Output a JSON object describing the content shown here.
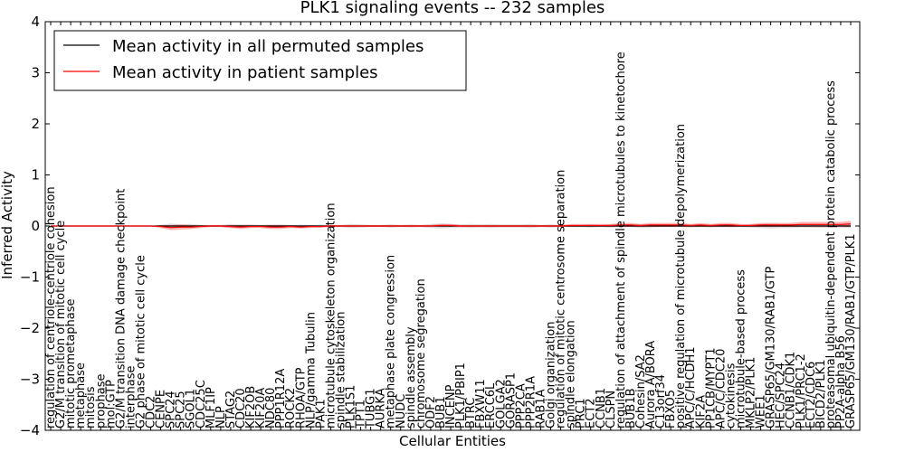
{
  "chart_data": {
    "type": "line",
    "title": "PLK1 signaling events -- 232 samples",
    "xlabel": "Cellular Entities",
    "ylabel": "Inferred Activity",
    "ylim": [
      -4,
      4
    ],
    "yticks": [
      -4,
      -3,
      -2,
      -1,
      0,
      1,
      2,
      3,
      4
    ],
    "ytick_labels": [
      "−4",
      "−3",
      "−2",
      "−1",
      "0",
      "1",
      "2",
      "3",
      "4"
    ],
    "grid": false,
    "legend_position": "top-left",
    "legend": [
      {
        "label": "Mean activity in all permuted samples",
        "color": "#000000"
      },
      {
        "label": "Mean activity in patient samples",
        "color": "#ff0000"
      }
    ],
    "categories": [
      "regulation of centriole-centriole cohesion",
      "G2/M transition of mitotic cell cycle",
      "mitotic prometaphase",
      "metaphase",
      "mitosis",
      "prophase",
      "mol:GTP",
      "G2/M transition DNA damage checkpoint",
      "interphase",
      "G2 phase of mitotic cell cycle",
      "CDC2",
      "CENPE",
      "SPC24",
      "SPC25",
      "SGOL1",
      "CDC25C",
      "MLF1IP",
      "NLP",
      "STAG2",
      "CDC20",
      "KIF2OB",
      "KIF20A",
      "NDC80",
      "PPP1R12A",
      "ROCK2",
      "RHOA/GTP",
      "NLP/gamma Tubulin",
      "PAK1",
      "microtubule cytoskeleton organization",
      "spindle stabilization",
      "PLK1S1",
      "TPT1",
      "TUBG1",
      "AURKA",
      "metaphase plate congression",
      "NUDC",
      "spindle assembly",
      "chromosome segregation",
      "ODF2",
      "BUB1",
      "INCENP",
      "PLK1/PBIP1",
      "BTRC",
      "FBXW11",
      "ERCC6L",
      "GOLGA2",
      "GORASP1",
      "PPP2CA",
      "PPP2R1A",
      "RAB1A",
      "Golgi organization",
      "regulation of mitotic centrosome separation",
      "spindle elongation",
      "PRC1",
      "ECT2",
      "CCNB1",
      "CLSPN",
      "regulation of attachment of spindle microtubules to kinetochore",
      "BUB1B",
      "Cohesin/SA2",
      "Aurora A/BORA",
      "C13orf34",
      "FBXO5",
      "positive regulation of microtubule depolymerization",
      "APC/C/HCDH1",
      "KIF2A",
      "PP1CB/MYPT1",
      "APC/C/CDC20",
      "cytokinesis",
      "microtubule-based process",
      "MKLP2/PLK1",
      "WEE1",
      "GRASP65/GM130/RAB1/GTP",
      "HEC/SPC24",
      "CCNB1/CDK1",
      "PLK1/PRC1-2",
      "ECT2/CDC6",
      "BICD2/PLK1",
      "proteasomal ubiquitin-dependent protein catabolic process",
      "PP2A-alpha B56",
      "GRASP65/GM130/RAB1/GTP/PLK1"
    ],
    "series": [
      {
        "name": "Mean activity in patient samples",
        "color": "#ff0000",
        "values": [
          0,
          0,
          0,
          0,
          0,
          0,
          0,
          0,
          0,
          0,
          0,
          -0.01,
          -0.03,
          -0.02,
          -0.02,
          -0.01,
          0,
          0,
          -0.01,
          -0.02,
          -0.01,
          -0.01,
          -0.02,
          -0.02,
          -0.01,
          -0.02,
          -0.01,
          -0.01,
          0,
          0,
          0,
          0,
          0,
          0,
          0,
          0,
          0,
          0,
          0,
          0.01,
          0.01,
          0,
          0,
          0,
          0,
          0,
          0,
          0,
          0,
          0,
          0,
          0,
          0.01,
          0.01,
          0.01,
          0.01,
          0.01,
          0.02,
          0.02,
          0.01,
          0.02,
          0.02,
          0.02,
          0.02,
          0.01,
          0.02,
          0.01,
          0.02,
          0.02,
          0.01,
          0.01,
          0.02,
          0.02,
          0.02,
          0.02,
          0.03,
          0.03,
          0.03,
          0.03,
          0.03,
          0.04
        ],
        "band_halfwidth": [
          0,
          0,
          0,
          0,
          0,
          0,
          0,
          0,
          0,
          0,
          0,
          0.03,
          0.05,
          0.05,
          0.04,
          0.03,
          0.02,
          0.02,
          0.03,
          0.04,
          0.03,
          0.03,
          0.04,
          0.04,
          0.03,
          0.03,
          0.03,
          0.02,
          0.02,
          0.02,
          0.02,
          0.02,
          0.02,
          0.02,
          0.02,
          0.02,
          0.02,
          0.02,
          0.02,
          0.03,
          0.03,
          0.02,
          0.02,
          0.02,
          0.02,
          0.02,
          0.02,
          0.02,
          0.02,
          0.02,
          0.02,
          0.02,
          0.03,
          0.03,
          0.03,
          0.03,
          0.03,
          0.04,
          0.04,
          0.03,
          0.04,
          0.04,
          0.04,
          0.04,
          0.03,
          0.04,
          0.03,
          0.04,
          0.04,
          0.03,
          0.03,
          0.04,
          0.04,
          0.04,
          0.04,
          0.05,
          0.05,
          0.05,
          0.05,
          0.05,
          0.06
        ]
      },
      {
        "name": "Mean activity in all permuted samples",
        "color": "#000000",
        "values": [
          0,
          0,
          0,
          0,
          0,
          0,
          0,
          0,
          0,
          0,
          0,
          0,
          0,
          0,
          0,
          0,
          0,
          0,
          0,
          0,
          0,
          0,
          0,
          0,
          0,
          0,
          0,
          0,
          0,
          0,
          0,
          0,
          0,
          0,
          0,
          0,
          0,
          0,
          0,
          0,
          0,
          0,
          0,
          0,
          0,
          0,
          0,
          0,
          0,
          0,
          0,
          0,
          0,
          0,
          0,
          0,
          0,
          0,
          0,
          0,
          0,
          0,
          0,
          0,
          0,
          0,
          0,
          0,
          0,
          0,
          0,
          0,
          0,
          0,
          0,
          0,
          0,
          0,
          0,
          0,
          0
        ],
        "band_halfwidth": [
          0,
          0,
          0,
          0,
          0,
          0,
          0,
          0,
          0,
          0,
          0,
          0.02,
          0.05,
          0.03,
          0.04,
          0.02,
          0.02,
          0.02,
          0.04,
          0.03,
          0.03,
          0.02,
          0.03,
          0.03,
          0.02,
          0.03,
          0.02,
          0.03,
          0.02,
          0.02,
          0.04,
          0.03,
          0.02,
          0.02,
          0.03,
          0.02,
          0.03,
          0.02,
          0.04,
          0.05,
          0.04,
          0.03,
          0.04,
          0.03,
          0.04,
          0.03,
          0.03,
          0.03,
          0.04,
          0.02,
          0.03,
          0.02,
          0.02,
          0.02,
          0.03,
          0.02,
          0.03,
          0.02,
          0.02,
          0.04,
          0.03,
          0.02,
          0.02,
          0.02,
          0.03,
          0.02,
          0.03,
          0.02,
          0.03,
          0.02,
          0.03,
          0.04,
          0.05,
          0.04,
          0.04,
          0.03,
          0.03,
          0.04,
          0.03,
          0.03,
          0.04
        ]
      }
    ]
  }
}
